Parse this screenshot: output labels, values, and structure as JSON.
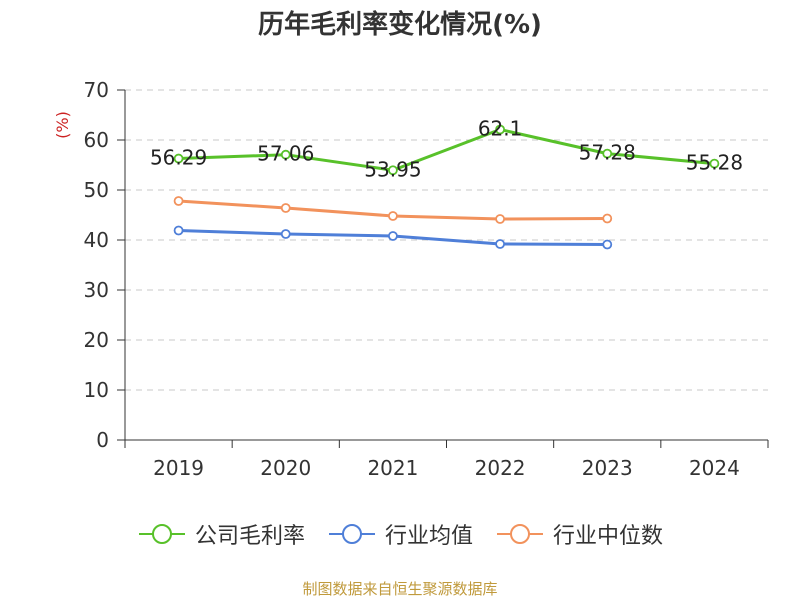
{
  "chart_data": {
    "type": "line",
    "title": "历年毛利率变化情况(%)",
    "ylabel": "(%)",
    "categories": [
      "2019",
      "2020",
      "2021",
      "2022",
      "2023",
      "2024"
    ],
    "ylim": [
      0,
      70
    ],
    "yticks": [
      0,
      10,
      20,
      30,
      40,
      50,
      60,
      70
    ],
    "grid": true,
    "legend_position": "bottom",
    "series": [
      {
        "name": "公司毛利率",
        "color": "#58c12a",
        "values": [
          56.29,
          57.06,
          53.95,
          62.1,
          57.28,
          55.28
        ],
        "labels": [
          "56.29",
          "57.06",
          "53.95",
          "62.1",
          "57.28",
          "55.28"
        ]
      },
      {
        "name": "行业均值",
        "color": "#4f7fd8",
        "values": [
          41.9,
          41.2,
          40.8,
          39.2,
          39.1,
          null
        ]
      },
      {
        "name": "行业中位数",
        "color": "#f2925c",
        "values": [
          47.8,
          46.4,
          44.8,
          44.2,
          44.3,
          null
        ]
      }
    ]
  },
  "footer": {
    "source": "制图数据来自恒生聚源数据库"
  }
}
